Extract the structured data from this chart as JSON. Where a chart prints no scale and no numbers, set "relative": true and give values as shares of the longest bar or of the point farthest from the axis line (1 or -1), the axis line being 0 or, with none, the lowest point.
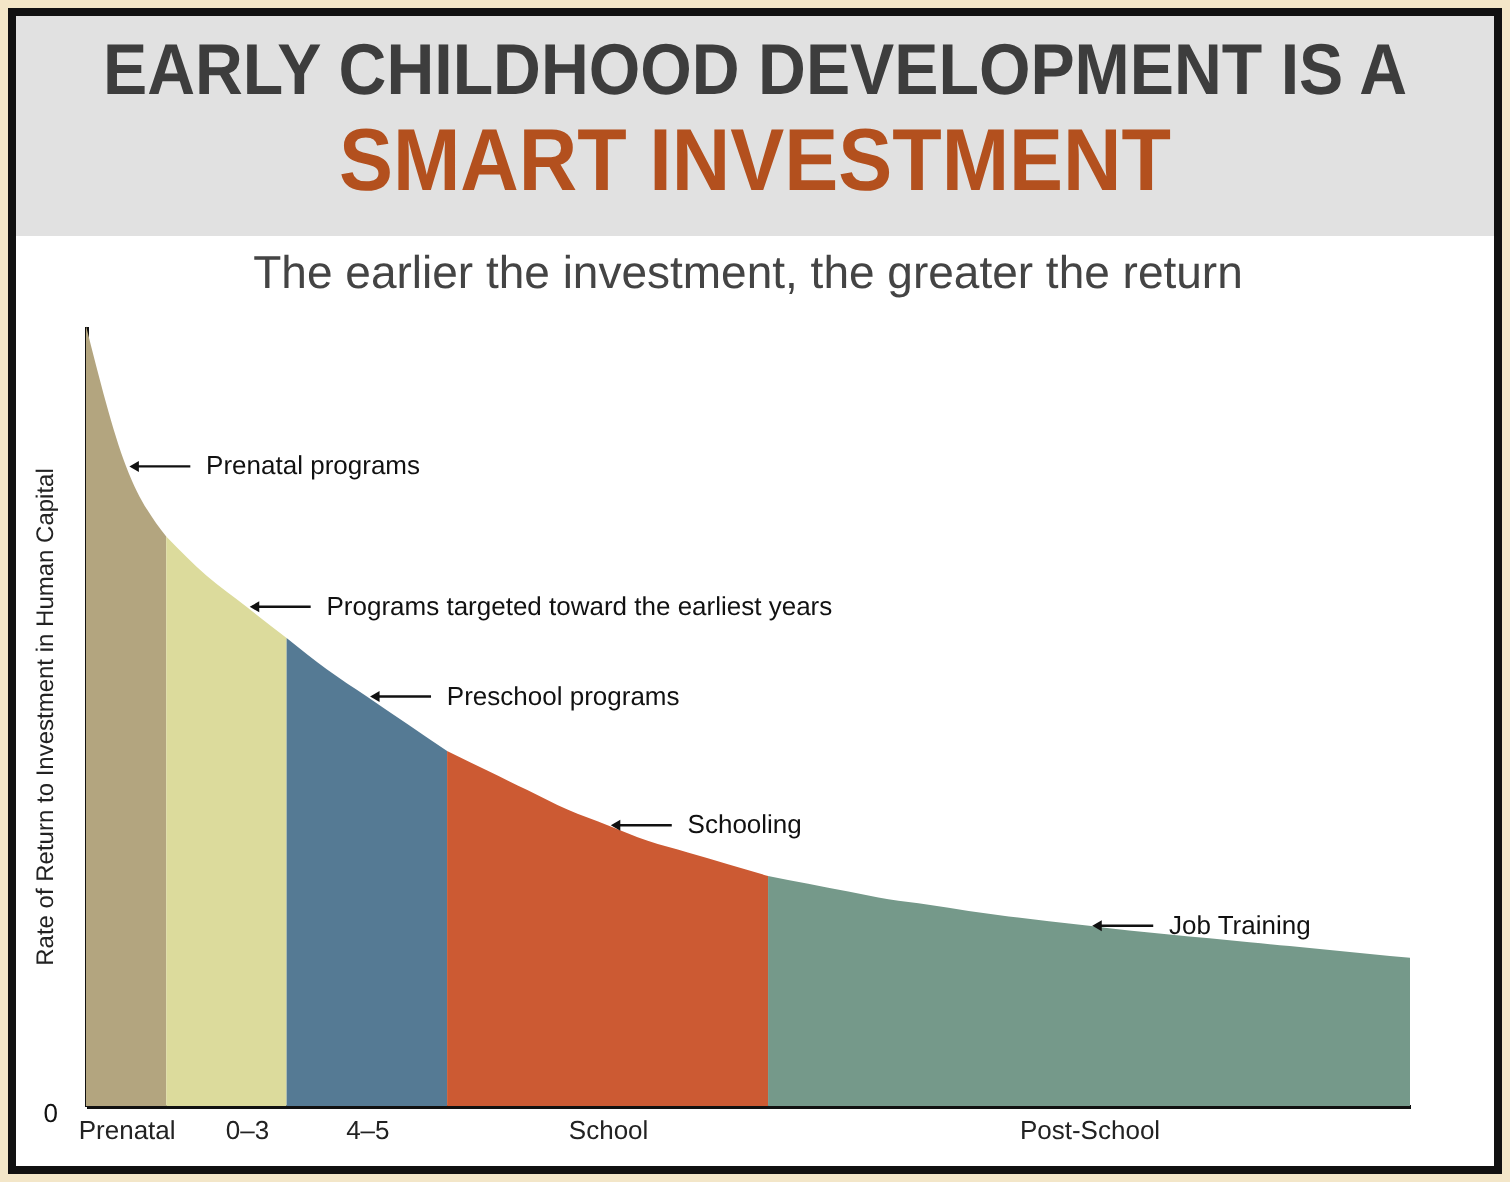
{
  "chart_data": {
    "type": "area",
    "relative": true,
    "title": "EARLY CHILDHOOD DEVELOPMENT IS A\nSMART INVESTMENT",
    "subtitle": "The earlier the investment, the greater the return",
    "ylabel": "Rate of Return to Investment in Human Capital",
    "categories": [
      null,
      "Prenatal",
      null,
      null,
      "0–3",
      null,
      null,
      "4–5",
      null,
      null,
      null,
      null,
      null,
      "School",
      null,
      null,
      null,
      null,
      null,
      null,
      null,
      null,
      null,
      null,
      null,
      "Post-School",
      null,
      null,
      null,
      null,
      null,
      null,
      null,
      null
    ],
    "series": [
      {
        "color": "#b3a57f",
        "values": [
          1,
          0.82,
          0.73,
          null,
          null,
          null,
          null,
          null,
          null,
          null,
          null,
          null,
          null,
          null,
          null,
          null,
          null,
          null,
          null,
          null,
          null,
          null,
          null,
          null,
          null,
          null,
          null,
          null,
          null,
          null,
          null,
          null,
          null,
          null
        ]
      },
      {
        "color": "#dcdb9c",
        "values": [
          null,
          null,
          0.73,
          0.68,
          0.64,
          0.6,
          null,
          null,
          null,
          null,
          null,
          null,
          null,
          null,
          null,
          null,
          null,
          null,
          null,
          null,
          null,
          null,
          null,
          null,
          null,
          null,
          null,
          null,
          null,
          null,
          null,
          null,
          null,
          null
        ]
      },
      {
        "color": "#557a94",
        "values": [
          null,
          null,
          null,
          null,
          null,
          0.6,
          0.56,
          0.525,
          0.49,
          0.455,
          null,
          null,
          null,
          null,
          null,
          null,
          null,
          null,
          null,
          null,
          null,
          null,
          null,
          null,
          null,
          null,
          null,
          null,
          null,
          null,
          null,
          null,
          null,
          null
        ]
      },
      {
        "color": "#cc5a33",
        "values": [
          null,
          null,
          null,
          null,
          null,
          null,
          null,
          null,
          null,
          0.455,
          0.43,
          0.405,
          0.38,
          0.36,
          0.34,
          0.325,
          0.31,
          0.295,
          null,
          null,
          null,
          null,
          null,
          null,
          null,
          null,
          null,
          null,
          null,
          null,
          null,
          null,
          null,
          null
        ]
      },
      {
        "color": "#75998a",
        "values": [
          null,
          null,
          null,
          null,
          null,
          null,
          null,
          null,
          null,
          null,
          null,
          null,
          null,
          null,
          null,
          null,
          null,
          0.295,
          0.285,
          0.275,
          0.265,
          0.258,
          0.25,
          0.243,
          0.237,
          0.231,
          0.225,
          0.22,
          0.215,
          0.21,
          0.205,
          0.2,
          0.195,
          0.19
        ]
      }
    ],
    "annotations": [
      "Prenatal programs",
      "Programs targeted toward the earliest years",
      "Preschool programs",
      "Schooling",
      "Job Training",
      "0"
    ],
    "grid": false
  }
}
